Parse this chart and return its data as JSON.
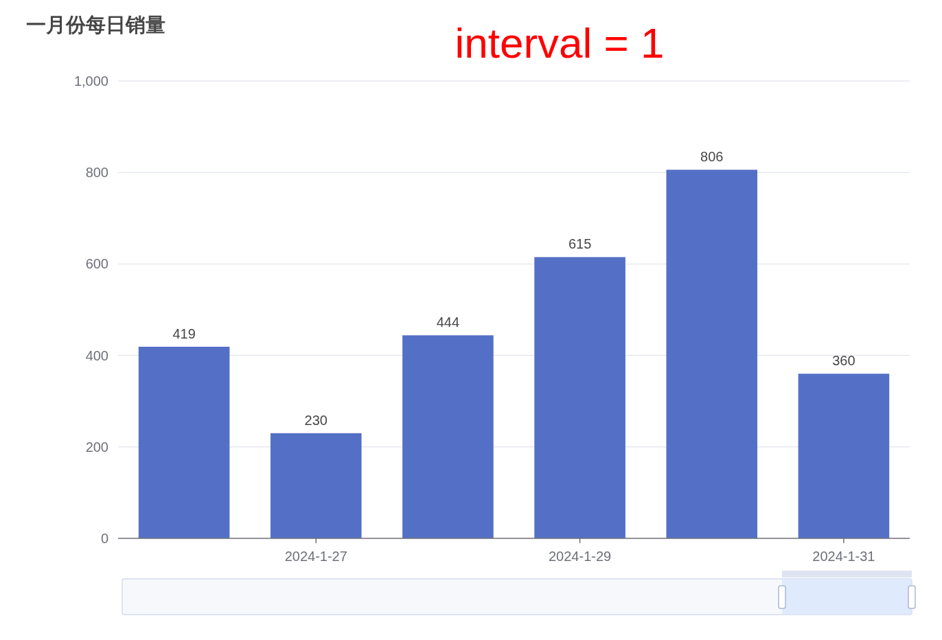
{
  "chart_data": {
    "type": "bar",
    "title": "一月份每日销量",
    "annotations": [
      "interval = 1"
    ],
    "categories": [
      null,
      "2024-1-27",
      null,
      "2024-1-29",
      null,
      "2024-1-31"
    ],
    "values": [
      419,
      230,
      444,
      615,
      806,
      360
    ],
    "color": "#5470c6",
    "ylim": [
      0,
      1000
    ],
    "yticks": [
      0,
      200,
      400,
      600,
      800,
      {
        "value": 1000,
        "label": "1,000"
      }
    ],
    "grid": "y",
    "data_labels": true
  }
}
